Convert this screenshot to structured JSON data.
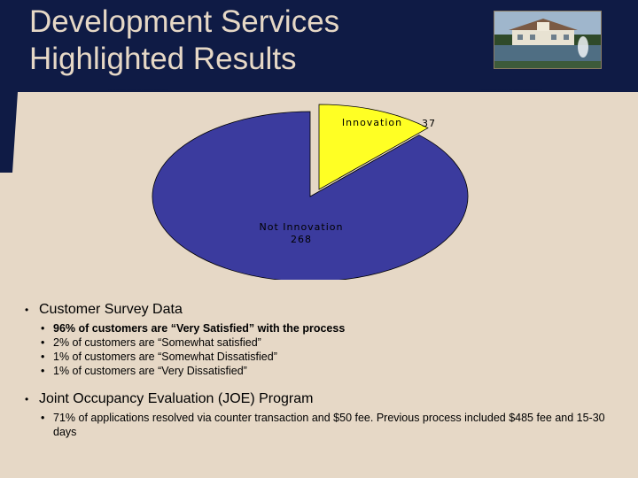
{
  "slide": {
    "title": "Development Services\nHighlighted Results",
    "header_color": "#0f1b45",
    "background_color": "#e6d8c6",
    "photo_icon": "building-with-fountain-photo"
  },
  "chart_data": {
    "type": "pie",
    "categories": [
      "Not Innovation",
      "Innovation"
    ],
    "values": [
      268,
      37
    ],
    "colors": [
      "#3b3b9e",
      "#ffff24"
    ],
    "title": "",
    "legend": "none",
    "data_labels": true
  },
  "content": {
    "sections": [
      {
        "heading": "Customer Survey Data",
        "items": [
          {
            "text": "96% of customers are “Very Satisfied” with the process",
            "bold": true
          },
          {
            "text": "2% of customers are “Somewhat satisfied”",
            "bold": false
          },
          {
            "text": "1% of customers are “Somewhat Dissatisfied”",
            "bold": false
          },
          {
            "text": "1% of customers are “Very Dissatisfied”",
            "bold": false
          }
        ]
      },
      {
        "heading": "Joint Occupancy Evaluation (JOE) Program",
        "items": [
          {
            "text": "71% of applications resolved via counter transaction and $50 fee. Previous process included $485 fee and 15-30 days",
            "bold": false
          }
        ]
      }
    ]
  }
}
